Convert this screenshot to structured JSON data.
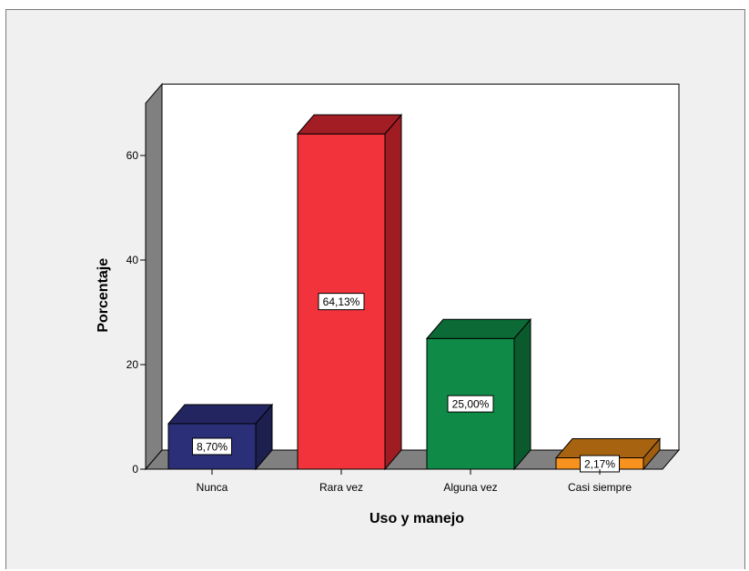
{
  "chart_data": {
    "type": "bar",
    "categories": [
      "Nunca",
      "Rara vez",
      "Alguna vez",
      "Casi siempre"
    ],
    "values": [
      8.7,
      64.13,
      25.0,
      2.17
    ],
    "data_labels": [
      "8,70%",
      "64,13%",
      "25,00%",
      "2,17%"
    ],
    "colors": [
      "#2b2f78",
      "#f2333b",
      "#0f8b47",
      "#f7921e"
    ],
    "side_colors": [
      "#1d1f4f",
      "#9e1c22",
      "#0a5a2e",
      "#9f5d10"
    ],
    "top_colors": [
      "#222560",
      "#a21d24",
      "#0b6a35",
      "#a86310"
    ],
    "xlabel": "Uso y manejo",
    "ylabel": "Porcentaje",
    "y_ticks": [
      0,
      20,
      40,
      60
    ],
    "ylim": [
      0,
      70
    ],
    "style": "3d-bar",
    "grid": false
  }
}
